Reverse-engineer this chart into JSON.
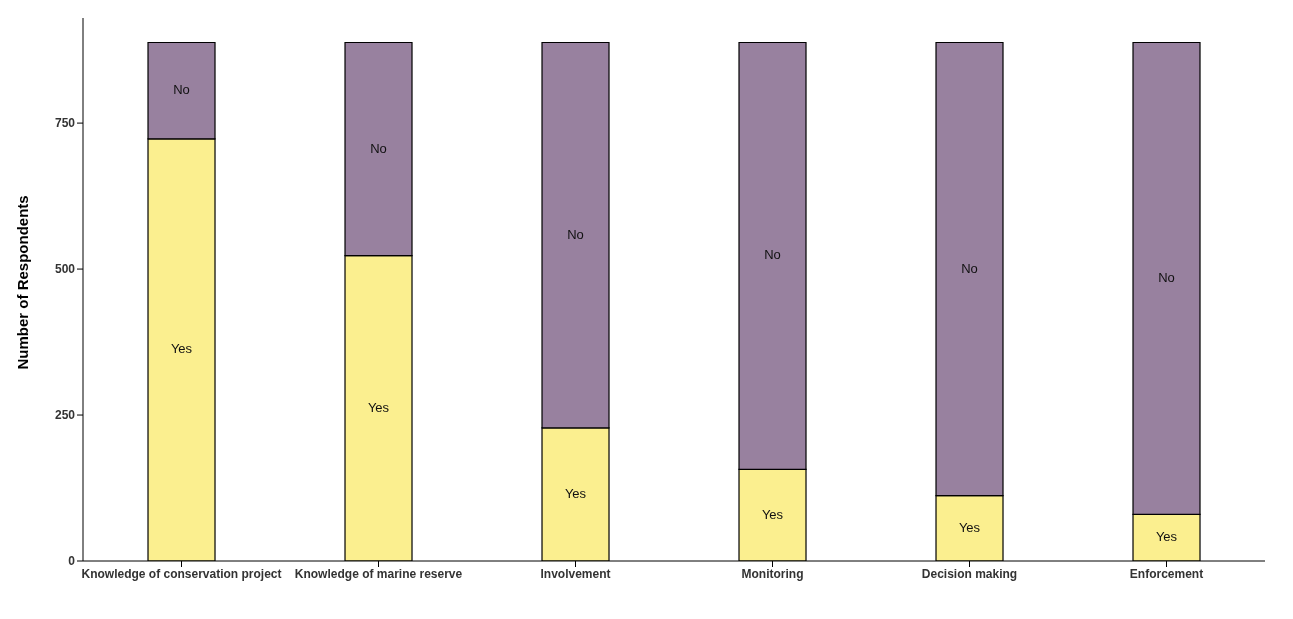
{
  "chart_data": {
    "type": "bar",
    "stacked": true,
    "ylabel": "Number of Respondents",
    "categories": [
      "Knowledge of conservation project",
      "Knowledge of marine reserve",
      "Involvement",
      "Monitoring",
      "Decision making",
      "Enforcement"
    ],
    "series": [
      {
        "name": "Yes",
        "color": "#fbef8f",
        "values": [
          723,
          523,
          228,
          157,
          112,
          80
        ]
      },
      {
        "name": "No",
        "color": "#98819f",
        "values": [
          165,
          365,
          660,
          731,
          776,
          808
        ]
      }
    ],
    "ylim": [
      0,
      930
    ],
    "yticks": [
      0,
      250,
      500,
      750
    ],
    "grid": false,
    "legend": false
  }
}
